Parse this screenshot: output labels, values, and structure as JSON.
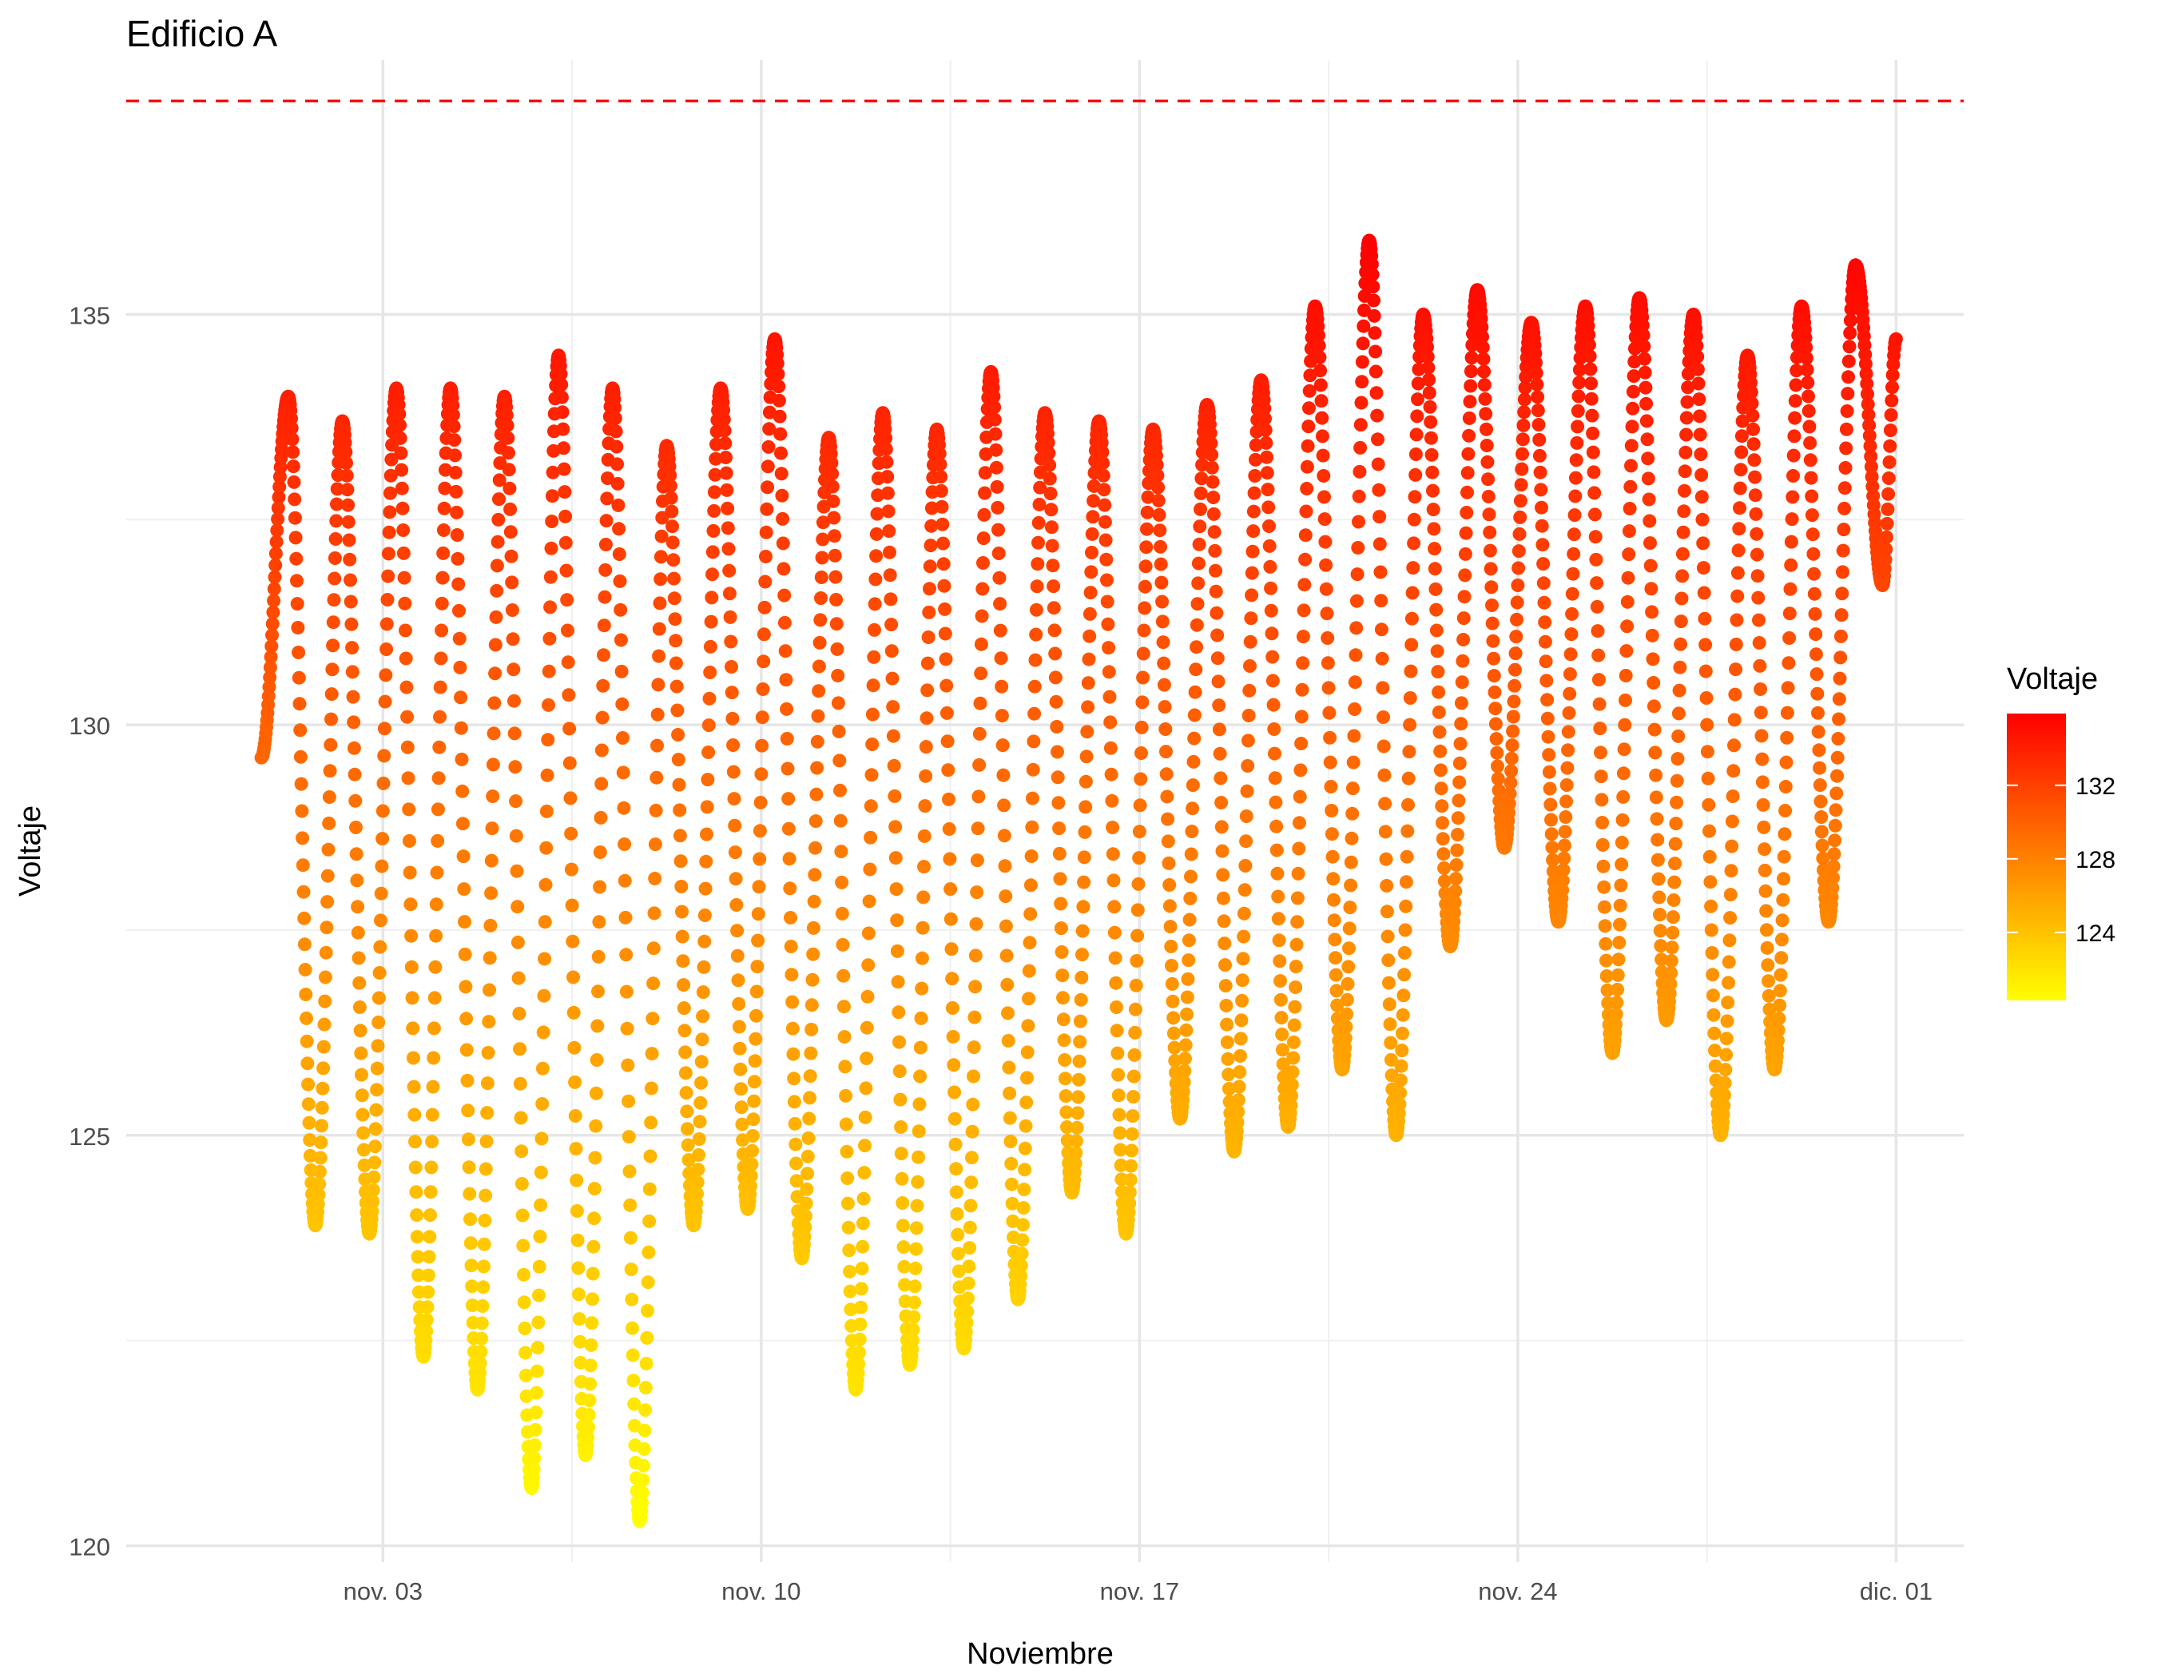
{
  "chart_data": {
    "type": "scatter",
    "title": "Edificio A",
    "xlabel": "Noviembre",
    "ylabel": "Voltaje",
    "x_tick_labels": [
      "nov. 03",
      "nov. 10",
      "nov. 17",
      "nov. 24",
      "dic. 01"
    ],
    "x_tick_dates": [
      "2023-11-03",
      "2023-11-10",
      "2023-11-17",
      "2023-11-24",
      "2023-12-01"
    ],
    "x_minor_dates": [
      "2023-11-06T12:00",
      "2023-11-13T12:00",
      "2023-11-20T12:00",
      "2023-11-27T12:00"
    ],
    "xlim": [
      "2023-10-29T06:00",
      "2023-12-02T06:00"
    ],
    "y_ticks": [
      120,
      125,
      130,
      135
    ],
    "y_tick_labels": [
      "120",
      "125",
      "130",
      "135"
    ],
    "y_minor_ticks": [
      122.5,
      127.5,
      132.5
    ],
    "ylim": [
      119.8,
      138.1
    ],
    "grid": true,
    "reference_line": {
      "y": 137.6,
      "color": "#ff0000",
      "style": "dashed"
    },
    "legend": {
      "title": "Voltaje",
      "position": "right",
      "colorbar_range": [
        120.3,
        135.9
      ],
      "ticks": [
        124,
        128,
        132
      ],
      "tick_labels": [
        "124",
        "128",
        "132"
      ],
      "low_color": "#ffff00",
      "high_color": "#ff0000"
    },
    "series": [
      {
        "time_resolution": "daily peaks and troughs (approx.)",
        "x": [
          "2023-10-31T18:00",
          "2023-11-01T06:00",
          "2023-11-01T18:00",
          "2023-11-02T06:00",
          "2023-11-02T18:00",
          "2023-11-03T06:00",
          "2023-11-03T18:00",
          "2023-11-04T06:00",
          "2023-11-04T18:00",
          "2023-11-05T06:00",
          "2023-11-05T18:00",
          "2023-11-06T06:00",
          "2023-11-06T18:00",
          "2023-11-07T06:00",
          "2023-11-07T18:00",
          "2023-11-08T06:00",
          "2023-11-08T18:00",
          "2023-11-09T06:00",
          "2023-11-09T18:00",
          "2023-11-10T06:00",
          "2023-11-10T18:00",
          "2023-11-11T06:00",
          "2023-11-11T18:00",
          "2023-11-12T06:00",
          "2023-11-12T18:00",
          "2023-11-13T06:00",
          "2023-11-13T18:00",
          "2023-11-14T06:00",
          "2023-11-14T18:00",
          "2023-11-15T06:00",
          "2023-11-15T18:00",
          "2023-11-16T06:00",
          "2023-11-16T18:00",
          "2023-11-17T06:00",
          "2023-11-17T18:00",
          "2023-11-18T06:00",
          "2023-11-18T18:00",
          "2023-11-19T06:00",
          "2023-11-19T18:00",
          "2023-11-20T06:00",
          "2023-11-20T18:00",
          "2023-11-21T06:00",
          "2023-11-21T18:00",
          "2023-11-22T06:00",
          "2023-11-22T18:00",
          "2023-11-23T06:00",
          "2023-11-23T18:00",
          "2023-11-24T06:00",
          "2023-11-24T18:00",
          "2023-11-25T06:00",
          "2023-11-25T18:00",
          "2023-11-26T06:00",
          "2023-11-26T18:00",
          "2023-11-27T06:00",
          "2023-11-27T18:00",
          "2023-11-28T06:00",
          "2023-11-28T18:00",
          "2023-11-29T06:00",
          "2023-11-29T18:00",
          "2023-11-30T06:00",
          "2023-11-30T18:00",
          "2023-12-01T00:00"
        ],
        "y": [
          129.6,
          134.0,
          123.9,
          133.7,
          123.8,
          134.1,
          122.3,
          134.1,
          121.9,
          134.0,
          120.7,
          134.5,
          121.1,
          134.1,
          120.3,
          133.4,
          123.9,
          134.1,
          124.1,
          134.7,
          123.5,
          133.5,
          121.9,
          133.8,
          122.2,
          133.6,
          122.4,
          134.3,
          123.0,
          133.8,
          124.3,
          133.7,
          123.8,
          133.6,
          125.2,
          133.9,
          124.8,
          134.2,
          125.1,
          135.1,
          125.8,
          135.9,
          125.0,
          135.0,
          127.3,
          135.3,
          128.5,
          134.9,
          127.6,
          135.1,
          126.0,
          135.2,
          126.4,
          135.0,
          125.0,
          134.5,
          125.8,
          135.1,
          127.6,
          135.6,
          131.7,
          134.7
        ]
      }
    ]
  }
}
